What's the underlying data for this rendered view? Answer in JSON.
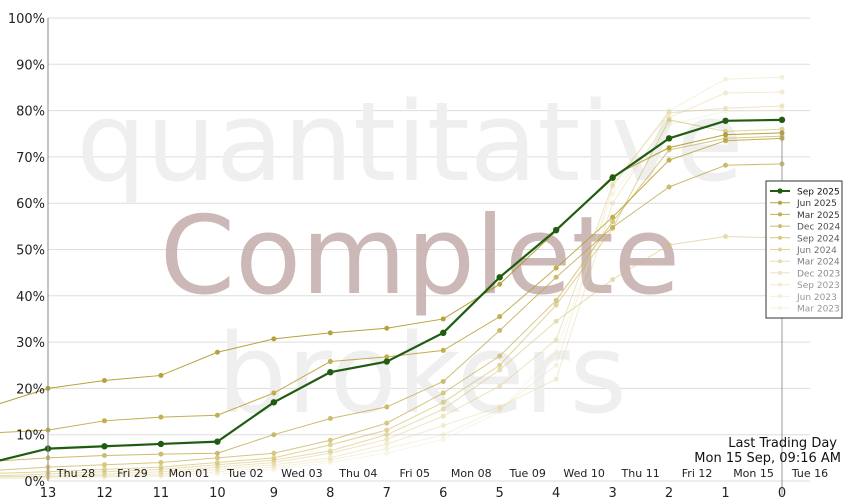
{
  "watermark": {
    "line1": "quantitative",
    "line2": "Complete",
    "line3": "brokers"
  },
  "last_trading": {
    "label": "Last Trading Day",
    "value": "Mon 15 Sep, 09:16 AM"
  },
  "colors": {
    "background": "#ffffff",
    "grid": "#dddddd",
    "axis": "#888888",
    "main_series": "#1f5c12",
    "watermark_main": "#c7b0ae",
    "watermark_faint": "#efefef"
  },
  "chart_data": {
    "type": "line",
    "title": "",
    "xlabel": "",
    "ylabel": "",
    "x": [
      13,
      12,
      11,
      10,
      9,
      8,
      7,
      6,
      5,
      4,
      3,
      2,
      1,
      0
    ],
    "x_tick_labels": [
      "13",
      "12",
      "11",
      "10",
      "9",
      "8",
      "7",
      "6",
      "5",
      "4",
      "3",
      "2",
      "1",
      "0"
    ],
    "date_labels": [
      "Thu 28",
      "Fri 29",
      "Mon 01",
      "Tue 02",
      "Wed 03",
      "Thu 04",
      "Fri 05",
      "Mon 08",
      "Tue 09",
      "Wed 10",
      "Thu 11",
      "Fri 12",
      "Mon 15",
      "Tue 16"
    ],
    "y_ticks": [
      "0%",
      "10%",
      "20%",
      "30%",
      "40%",
      "50%",
      "60%",
      "70%",
      "80%",
      "90%",
      "100%"
    ],
    "ylim": [
      0,
      100
    ],
    "grid": true,
    "legend_position": "right",
    "series": [
      {
        "name": "Sep 2025",
        "color": "#1f5c12",
        "opacity": 1.0,
        "width": 2.2,
        "marker": 3.2,
        "leading_x": 14.0,
        "leading_y": 4,
        "values": [
          7,
          7.5,
          8,
          8.5,
          17,
          23.5,
          25.8,
          32,
          44,
          54.2,
          65.5,
          74,
          77.8,
          78
        ]
      },
      {
        "name": "Jun 2025",
        "color": "#a8941c",
        "opacity": 0.85,
        "width": 1,
        "marker": 2.5,
        "leading_x": 14.3,
        "leading_y": 15,
        "values": [
          20,
          21.7,
          22.8,
          27.8,
          30.7,
          32,
          33,
          35,
          42.5,
          54,
          65.8,
          72,
          74.8,
          75.2
        ]
      },
      {
        "name": "Mar 2025",
        "color": "#b8a030",
        "opacity": 0.85,
        "width": 1,
        "marker": 2.5,
        "leading_x": 14.3,
        "leading_y": 10.2,
        "values": [
          11,
          13,
          13.8,
          14.2,
          19,
          25.8,
          26.8,
          28.2,
          35.5,
          46,
          57,
          69.3,
          73.5,
          74
        ]
      },
      {
        "name": "Dec 2024",
        "color": "#bca540",
        "opacity": 0.75,
        "width": 1,
        "marker": 2.5,
        "leading_x": 14.3,
        "leading_y": 4,
        "values": [
          5,
          5.5,
          5.8,
          6,
          10,
          13.5,
          16,
          21.5,
          32.5,
          44,
          54.8,
          63.5,
          68.2,
          68.5
        ]
      },
      {
        "name": "Sep 2024",
        "color": "#c6b050",
        "opacity": 0.7,
        "width": 1,
        "marker": 2.5,
        "leading_x": 14.3,
        "leading_y": 2,
        "values": [
          3,
          3.5,
          4,
          5,
          6,
          8.8,
          12.5,
          19,
          27,
          39,
          56,
          71.5,
          74,
          74.5
        ]
      },
      {
        "name": "Jun 2024",
        "color": "#ccb85c",
        "opacity": 0.6,
        "width": 1,
        "marker": 2.5,
        "leading_x": 14.3,
        "leading_y": 1.5,
        "values": [
          2,
          2.5,
          3,
          4,
          5,
          7.8,
          11,
          17,
          25,
          38,
          54.5,
          78,
          75.5,
          76
        ]
      },
      {
        "name": "Mar 2024",
        "color": "#d4c070",
        "opacity": 0.55,
        "width": 1,
        "marker": 2.5,
        "leading_x": 14.3,
        "leading_y": 1,
        "values": [
          1.5,
          2,
          2.5,
          3.5,
          4.5,
          6.5,
          10,
          15.5,
          24,
          34.5,
          43.5,
          51,
          52.8,
          52.5
        ]
      },
      {
        "name": "Dec 2023",
        "color": "#dccb84",
        "opacity": 0.5,
        "width": 1,
        "marker": 2.5,
        "leading_x": 14.3,
        "leading_y": 1,
        "values": [
          1,
          1.5,
          2,
          3,
          4,
          6,
          9,
          14,
          20.5,
          30.5,
          64,
          79.5,
          80.5,
          81
        ]
      },
      {
        "name": "Sep 2023",
        "color": "#e2d398",
        "opacity": 0.45,
        "width": 1,
        "marker": 2.5,
        "leading_x": 14.3,
        "leading_y": 0.8,
        "values": [
          1,
          1.2,
          1.5,
          2.5,
          3.5,
          5,
          8,
          12,
          16,
          22,
          60,
          78.5,
          83.8,
          84
        ]
      },
      {
        "name": "Jun 2023",
        "color": "#e8dcaa",
        "opacity": 0.4,
        "width": 1,
        "marker": 2.5,
        "leading_x": 14.3,
        "leading_y": 0.5,
        "values": [
          0.8,
          1,
          1.2,
          2,
          3,
          4.5,
          7,
          10,
          15.5,
          25,
          63.5,
          80,
          86.8,
          87.2
        ]
      },
      {
        "name": "Mar 2023",
        "color": "#ede4bc",
        "opacity": 0.35,
        "width": 1,
        "marker": 2.5,
        "leading_x": 14.3,
        "leading_y": 0.5,
        "values": [
          0.5,
          0.8,
          1,
          1.5,
          2.5,
          4,
          6,
          9,
          15,
          28,
          62,
          77,
          79.8,
          80
        ]
      }
    ]
  }
}
